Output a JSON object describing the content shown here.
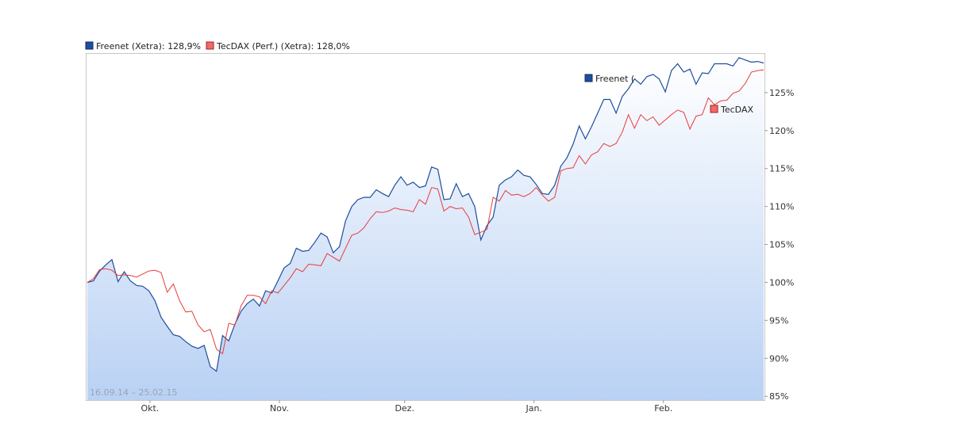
{
  "chart_data": {
    "type": "line",
    "date_range_label": "16.09.14 – 25.02.15",
    "x_tick_labels": [
      "Okt.",
      "Nov.",
      "Dez.",
      "Jan.",
      "Feb."
    ],
    "x_start": "2014-09-16",
    "x_end": "2015-02-25",
    "x_ticks": [
      "2014-10-01",
      "2014-11-01",
      "2014-12-01",
      "2015-01-01",
      "2015-02-01"
    ],
    "y_tick_labels": [
      "85%",
      "90%",
      "95%",
      "100%",
      "105%",
      "110%",
      "115%",
      "120%",
      "125%"
    ],
    "y_ticks": [
      85,
      90,
      95,
      100,
      105,
      110,
      115,
      120,
      125
    ],
    "ylim": [
      84.5,
      130.1
    ],
    "y_axis_side": "right",
    "grid": false,
    "legend_placement": "top-left",
    "series": [
      {
        "name": "Freenet (Xetra)",
        "legend_label": "Freenet (Xetra): 128,9%",
        "end_label": "Freenet (",
        "color": "#1f4e9c",
        "area_fill": true,
        "values": [
          100.0,
          100.2,
          101.5,
          102.3,
          103.0,
          100.1,
          101.4,
          100.2,
          99.6,
          99.5,
          98.9,
          97.6,
          95.4,
          94.2,
          93.1,
          92.9,
          92.2,
          91.6,
          91.3,
          91.7,
          88.9,
          88.3,
          93.0,
          92.3,
          94.5,
          96.2,
          97.2,
          97.8,
          96.9,
          98.9,
          98.6,
          100.2,
          101.9,
          102.5,
          104.5,
          104.1,
          104.2,
          105.3,
          106.5,
          106.0,
          103.9,
          104.7,
          108.1,
          110.0,
          110.9,
          111.2,
          111.2,
          112.2,
          111.7,
          111.3,
          112.8,
          113.9,
          112.8,
          113.2,
          112.5,
          112.7,
          115.2,
          114.9,
          110.9,
          111.0,
          113.0,
          111.3,
          111.7,
          110.0,
          105.6,
          107.5,
          108.6,
          112.8,
          113.5,
          113.9,
          114.8,
          114.1,
          113.9,
          112.9,
          111.7,
          111.6,
          112.8,
          115.3,
          116.4,
          118.2,
          120.6,
          118.9,
          120.5,
          122.3,
          124.1,
          124.1,
          122.3,
          124.5,
          125.5,
          126.8,
          126.1,
          127.1,
          127.4,
          126.8,
          125.1,
          127.9,
          128.8,
          127.7,
          128.1,
          126.1,
          127.6,
          127.5,
          128.8,
          128.8,
          128.8,
          128.5,
          129.6,
          129.3,
          129.0,
          129.1,
          128.9
        ]
      },
      {
        "name": "TecDAX (Perf.) (Xetra)",
        "legend_label": "TecDAX (Perf.) (Xetra): 128,0%",
        "end_label": "TecDAX",
        "color": "#e83c3c",
        "area_fill": false,
        "values": [
          100.0,
          100.5,
          101.7,
          101.8,
          101.6,
          100.9,
          101.0,
          100.9,
          100.7,
          101.1,
          101.5,
          101.6,
          101.3,
          98.7,
          99.8,
          97.6,
          96.1,
          96.2,
          94.4,
          93.5,
          93.8,
          91.2,
          90.6,
          94.6,
          94.4,
          96.9,
          98.3,
          98.3,
          98.1,
          97.2,
          98.9,
          98.6,
          99.6,
          100.6,
          101.8,
          101.4,
          102.4,
          102.3,
          102.2,
          103.8,
          103.3,
          102.8,
          104.5,
          106.2,
          106.5,
          107.2,
          108.4,
          109.3,
          109.2,
          109.4,
          109.8,
          109.6,
          109.5,
          109.3,
          110.9,
          110.3,
          112.5,
          112.3,
          109.4,
          110.0,
          109.7,
          109.8,
          108.6,
          106.3,
          106.6,
          107.0,
          111.2,
          110.7,
          112.1,
          111.5,
          111.6,
          111.3,
          111.7,
          112.5,
          111.5,
          110.7,
          111.2,
          114.7,
          115.0,
          115.1,
          116.7,
          115.6,
          116.8,
          117.2,
          118.3,
          117.9,
          118.3,
          119.8,
          122.1,
          120.3,
          122.1,
          121.3,
          121.8,
          120.7,
          121.4,
          122.1,
          122.7,
          122.4,
          120.2,
          121.9,
          122.1,
          124.3,
          123.4,
          123.9,
          124.0,
          124.9,
          125.2,
          126.2,
          127.7,
          127.9,
          128.0
        ]
      }
    ]
  }
}
